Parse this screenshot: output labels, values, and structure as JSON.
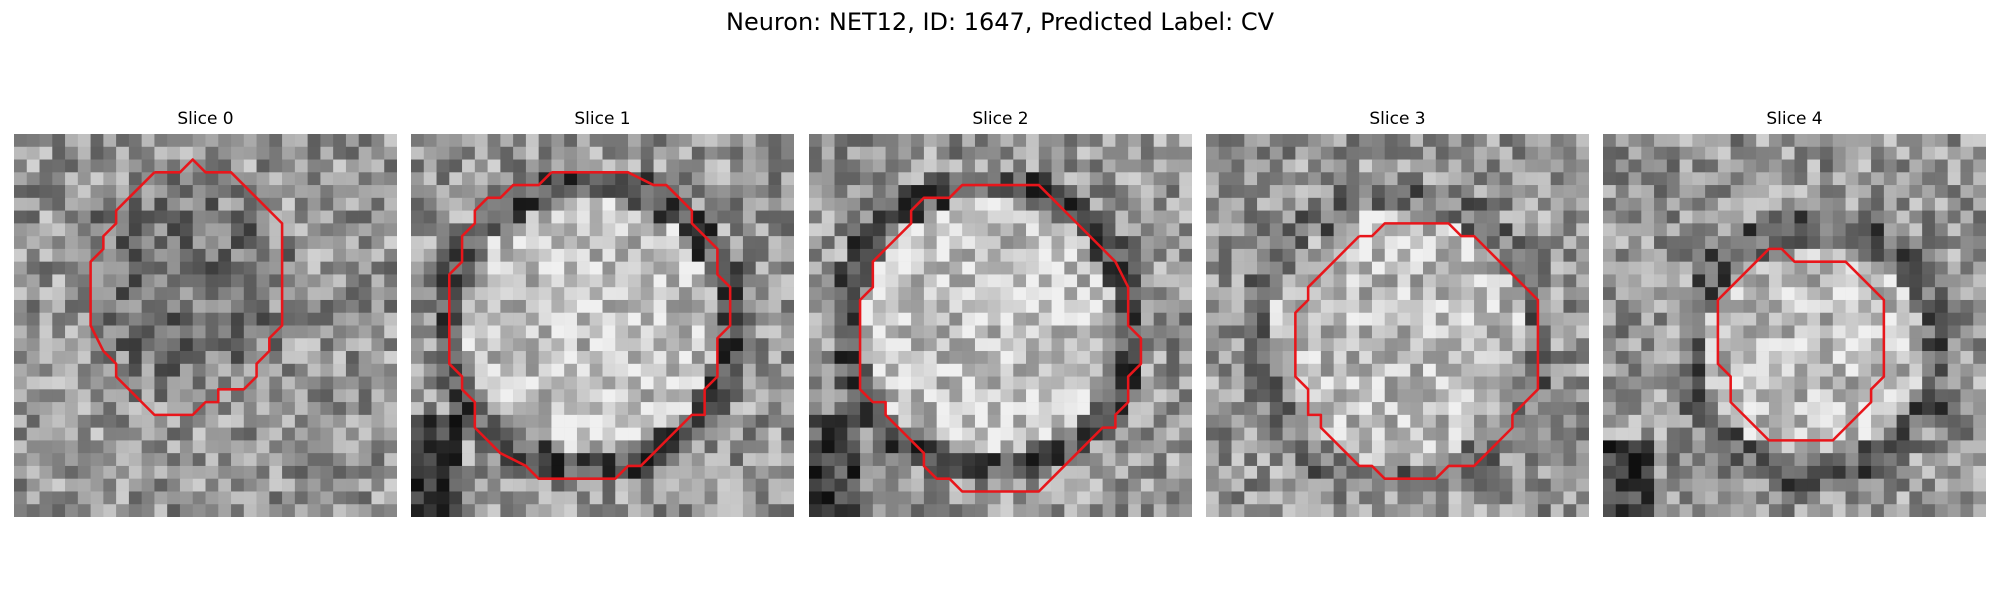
{
  "figure": {
    "title": "Neuron: NET12, ID: 1647, Predicted Label: CV",
    "contour_color": "#e8161b"
  },
  "panels": [
    {
      "title": "Slice 0",
      "image_description": "grayscale noisy microscopy crop, darker textured blob inside contour",
      "contour_shape": "irregular octagon-like outline with a small peak at top"
    },
    {
      "title": "Slice 1",
      "image_description": "grayscale crop with large bright round region ringed by a dark boundary",
      "contour_shape": "large rounded polygon outline"
    },
    {
      "title": "Slice 2",
      "image_description": "grayscale crop with bright speckled round region and dark surroundings",
      "contour_shape": "large rounded polygon outline"
    },
    {
      "title": "Slice 3",
      "image_description": "grayscale crop with light round region bordered by a darker ring, dark corner at bottom-left",
      "contour_shape": "rounded polygon outline"
    },
    {
      "title": "Slice 4",
      "image_description": "grayscale crop with a small bright round region, darker textured surroundings",
      "contour_shape": "small rounded polygon outline"
    }
  ]
}
